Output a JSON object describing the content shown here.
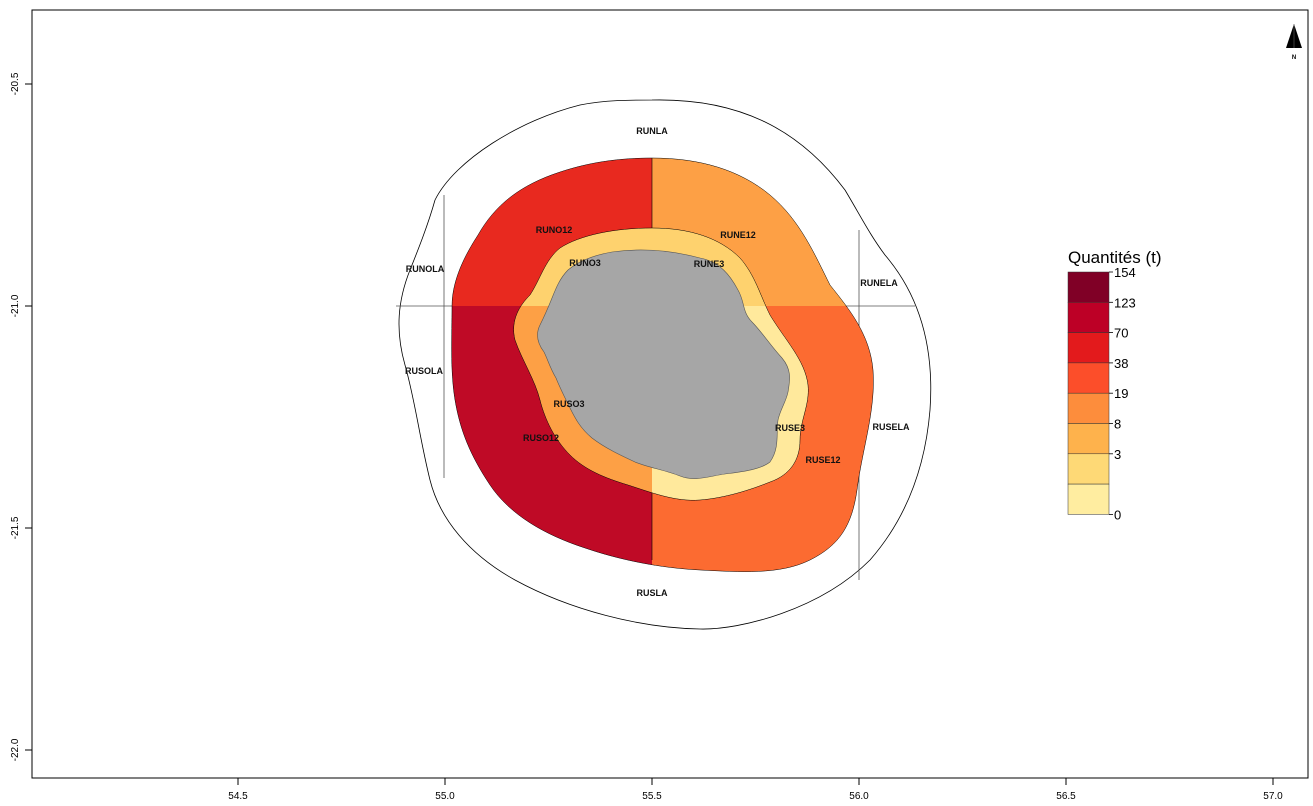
{
  "map": {
    "x_ticks": [
      "54.5",
      "55.0",
      "55.5",
      "56.0",
      "56.5",
      "57.0"
    ],
    "y_ticks": [
      "-20.5",
      "-21.0",
      "-21.5",
      "-22.0"
    ],
    "north_label": "N",
    "zones": {
      "RUNLA": "RUNLA",
      "RUNOLA": "RUNOLA",
      "RUNELA": "RUNELA",
      "RUSOLA": "RUSOLA",
      "RUSELA": "RUSELA",
      "RUSLA": "RUSLA",
      "RUNO12": "RUNO12",
      "RUNE12": "RUNE12",
      "RUSO12": "RUSO12",
      "RUSE12": "RUSE12",
      "RUNO3": "RUNO3",
      "RUNE3": "RUNE3",
      "RUSO3": "RUSO3",
      "RUSE3": "RUSE3"
    },
    "zone_colors": {
      "RUNO12": "#e8291f",
      "RUNE12": "#fda045",
      "RUSO12": "#bf0a26",
      "RUSE12": "#fc6b31",
      "RUNO3": "#fed26e",
      "RUNE3": "#fed26e",
      "RUSO3": "#fda045",
      "RUSE3": "#ffe99c",
      "island": "#a6a6a6"
    }
  },
  "legend": {
    "title": "Quantités (t)",
    "breaks": [
      "154",
      "123",
      "70",
      "38",
      "19",
      "8",
      "3",
      "0"
    ],
    "colors": [
      "#800026",
      "#bd0026",
      "#e31a1c",
      "#fc4e2a",
      "#fd8d3c",
      "#feb24c",
      "#fed976",
      "#ffeda0"
    ]
  }
}
